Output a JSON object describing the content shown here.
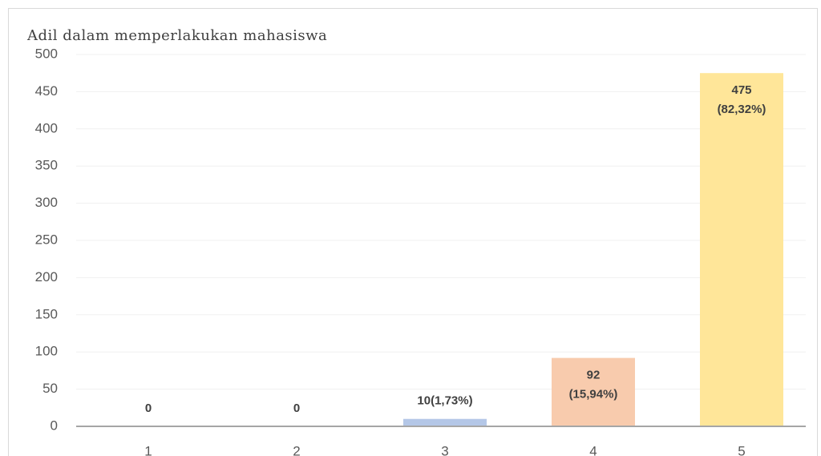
{
  "chart_data": {
    "type": "bar",
    "title": "Adil dalam memperlakukan mahasiswa",
    "categories": [
      "1",
      "2",
      "3",
      "4",
      "5"
    ],
    "values": [
      0,
      0,
      10,
      92,
      475
    ],
    "value_labels": [
      "0",
      "0",
      "10(1,73%)",
      "92\n(15,94%)",
      "475\n(82,32%)"
    ],
    "colors": [
      null,
      null,
      "#b4c7e7",
      "#f8cbad",
      "#ffe699"
    ],
    "ylim": [
      0,
      500
    ],
    "yticks": [
      0,
      50,
      100,
      150,
      200,
      250,
      300,
      350,
      400,
      450,
      500
    ],
    "grid": true
  }
}
